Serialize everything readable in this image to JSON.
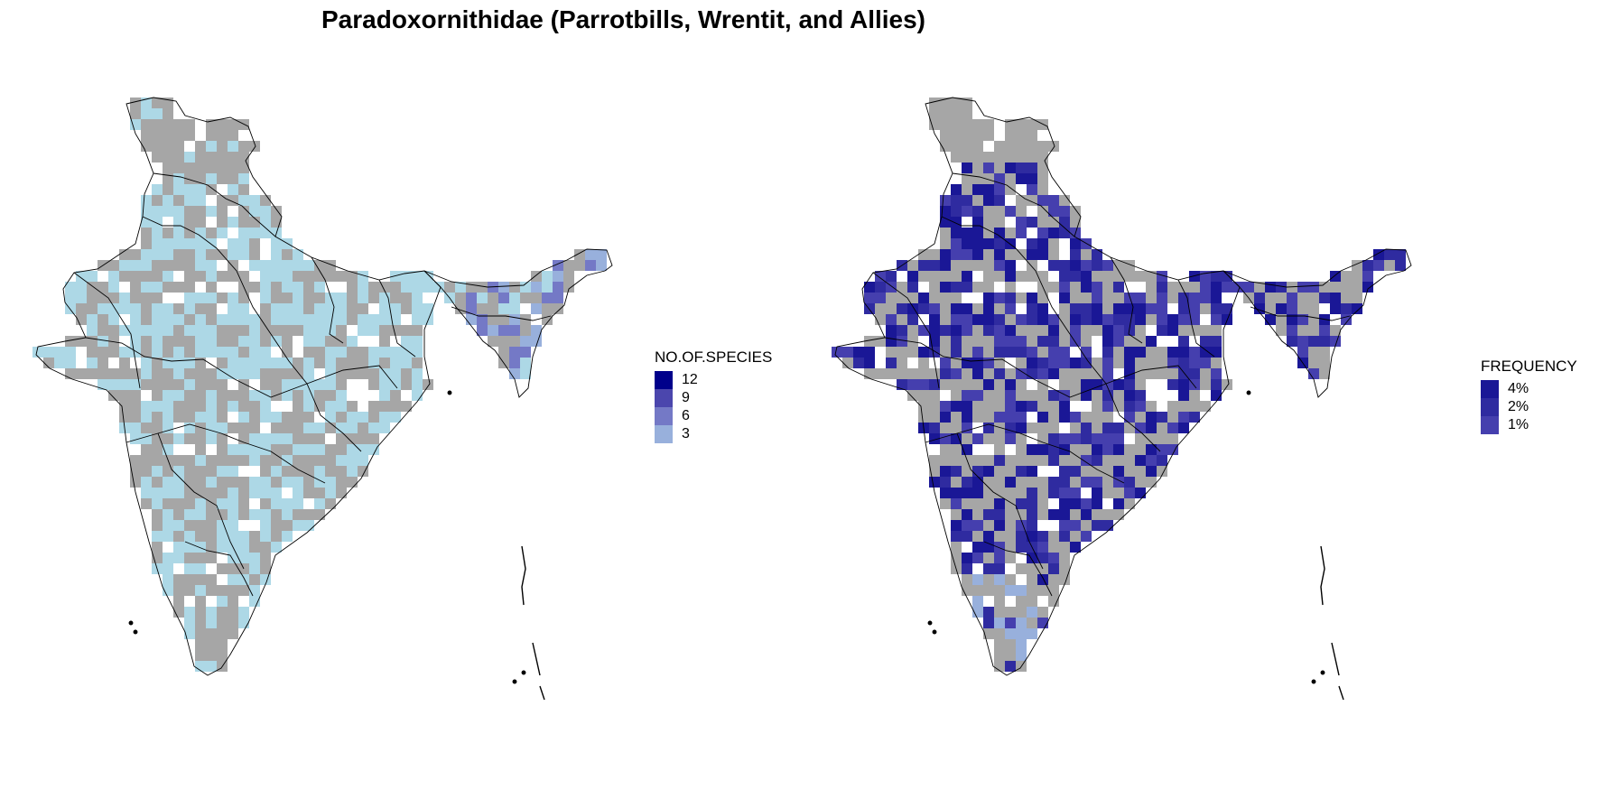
{
  "title": "Paradoxornithidae (Parrotbills, Wrentit, and Allies)",
  "colors": {
    "no_data": "#a6a6a6",
    "present": "#add8e6",
    "border": "#000000"
  },
  "legends": {
    "species": {
      "title": "NO.OF.SPECIES",
      "items": [
        {
          "label": "12",
          "color": "#00008b"
        },
        {
          "label": "9",
          "color": "#4b46ad"
        },
        {
          "label": "6",
          "color": "#7479c6"
        },
        {
          "label": "3",
          "color": "#98b0dc"
        }
      ]
    },
    "frequency": {
      "title": "FREQUENCY",
      "items": [
        {
          "label": "4%",
          "color": "#1a1796"
        },
        {
          "label": "2%",
          "color": "#2f2ba0"
        },
        {
          "label": "1%",
          "color": "#453fae"
        }
      ]
    }
  }
}
